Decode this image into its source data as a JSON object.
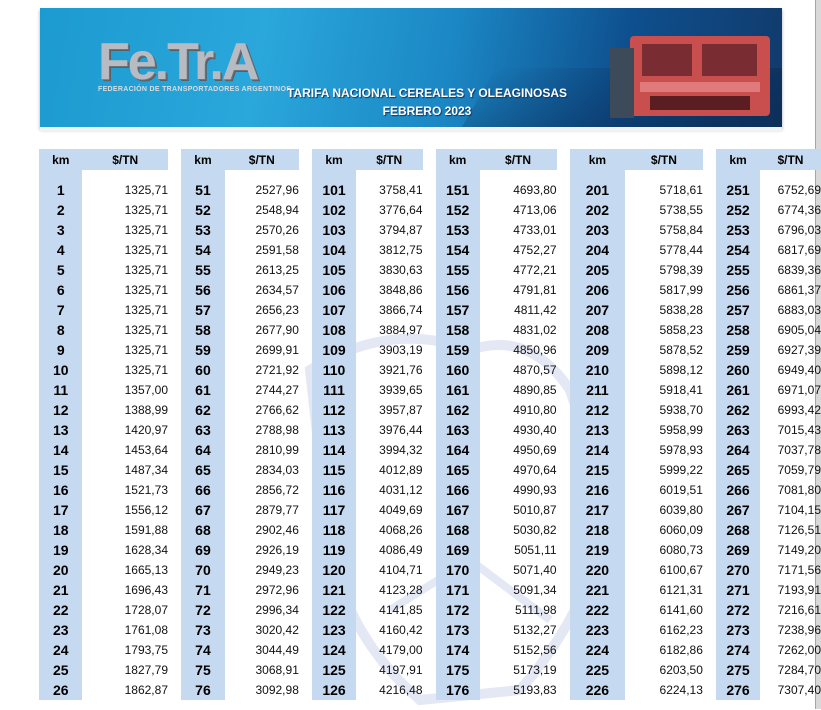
{
  "header": {
    "logo_text": "Fe.Tr.A",
    "logo_subtitle": "FEDERACIÓN DE TRANSPORTADORES ARGENTINOS",
    "title": "TARIFA NACIONAL CEREALES Y OLEAGINOSAS",
    "subtitle": "FEBRERO  2023"
  },
  "table": {
    "columns": [
      {
        "km": "km",
        "val": "$/TN"
      },
      {
        "km": "km",
        "val": "$/TN"
      },
      {
        "km": "km",
        "val": "$/TN"
      },
      {
        "km": "km",
        "val": "$/TN"
      },
      {
        "km": "km",
        "val": "$/TN"
      },
      {
        "km": "km",
        "val": "$/TN"
      }
    ],
    "rows": [
      [
        [
          "1",
          "1325,71"
        ],
        [
          "51",
          "2527,96"
        ],
        [
          "101",
          "3758,41"
        ],
        [
          "151",
          "4693,80"
        ],
        [
          "201",
          "5718,61"
        ],
        [
          "251",
          "6752,69"
        ]
      ],
      [
        [
          "2",
          "1325,71"
        ],
        [
          "52",
          "2548,94"
        ],
        [
          "102",
          "3776,64"
        ],
        [
          "152",
          "4713,06"
        ],
        [
          "202",
          "5738,55"
        ],
        [
          "252",
          "6774,36"
        ]
      ],
      [
        [
          "3",
          "1325,71"
        ],
        [
          "53",
          "2570,26"
        ],
        [
          "103",
          "3794,87"
        ],
        [
          "153",
          "4733,01"
        ],
        [
          "203",
          "5758,84"
        ],
        [
          "253",
          "6796,03"
        ]
      ],
      [
        [
          "4",
          "1325,71"
        ],
        [
          "54",
          "2591,58"
        ],
        [
          "104",
          "3812,75"
        ],
        [
          "154",
          "4752,27"
        ],
        [
          "204",
          "5778,44"
        ],
        [
          "254",
          "6817,69"
        ]
      ],
      [
        [
          "5",
          "1325,71"
        ],
        [
          "55",
          "2613,25"
        ],
        [
          "105",
          "3830,63"
        ],
        [
          "155",
          "4772,21"
        ],
        [
          "205",
          "5798,39"
        ],
        [
          "255",
          "6839,36"
        ]
      ],
      [
        [
          "6",
          "1325,71"
        ],
        [
          "56",
          "2634,57"
        ],
        [
          "106",
          "3848,86"
        ],
        [
          "156",
          "4791,81"
        ],
        [
          "206",
          "5817,99"
        ],
        [
          "256",
          "6861,37"
        ]
      ],
      [
        [
          "7",
          "1325,71"
        ],
        [
          "57",
          "2656,23"
        ],
        [
          "107",
          "3866,74"
        ],
        [
          "157",
          "4811,42"
        ],
        [
          "207",
          "5838,28"
        ],
        [
          "257",
          "6883,03"
        ]
      ],
      [
        [
          "8",
          "1325,71"
        ],
        [
          "58",
          "2677,90"
        ],
        [
          "108",
          "3884,97"
        ],
        [
          "158",
          "4831,02"
        ],
        [
          "208",
          "5858,23"
        ],
        [
          "258",
          "6905,04"
        ]
      ],
      [
        [
          "9",
          "1325,71"
        ],
        [
          "59",
          "2699,91"
        ],
        [
          "109",
          "3903,19"
        ],
        [
          "159",
          "4850,96"
        ],
        [
          "209",
          "5878,52"
        ],
        [
          "259",
          "6927,39"
        ]
      ],
      [
        [
          "10",
          "1325,71"
        ],
        [
          "60",
          "2721,92"
        ],
        [
          "110",
          "3921,76"
        ],
        [
          "160",
          "4870,57"
        ],
        [
          "210",
          "5898,12"
        ],
        [
          "260",
          "6949,40"
        ]
      ],
      [
        [
          "11",
          "1357,00"
        ],
        [
          "61",
          "2744,27"
        ],
        [
          "111",
          "3939,65"
        ],
        [
          "161",
          "4890,85"
        ],
        [
          "211",
          "5918,41"
        ],
        [
          "261",
          "6971,07"
        ]
      ],
      [
        [
          "12",
          "1388,99"
        ],
        [
          "62",
          "2766,62"
        ],
        [
          "112",
          "3957,87"
        ],
        [
          "162",
          "4910,80"
        ],
        [
          "212",
          "5938,70"
        ],
        [
          "262",
          "6993,42"
        ]
      ],
      [
        [
          "13",
          "1420,97"
        ],
        [
          "63",
          "2788,98"
        ],
        [
          "113",
          "3976,44"
        ],
        [
          "163",
          "4930,40"
        ],
        [
          "213",
          "5958,99"
        ],
        [
          "263",
          "7015,43"
        ]
      ],
      [
        [
          "14",
          "1453,64"
        ],
        [
          "64",
          "2810,99"
        ],
        [
          "114",
          "3994,32"
        ],
        [
          "164",
          "4950,69"
        ],
        [
          "214",
          "5978,93"
        ],
        [
          "264",
          "7037,78"
        ]
      ],
      [
        [
          "15",
          "1487,34"
        ],
        [
          "65",
          "2834,03"
        ],
        [
          "115",
          "4012,89"
        ],
        [
          "165",
          "4970,64"
        ],
        [
          "215",
          "5999,22"
        ],
        [
          "265",
          "7059,79"
        ]
      ],
      [
        [
          "16",
          "1521,73"
        ],
        [
          "66",
          "2856,72"
        ],
        [
          "116",
          "4031,12"
        ],
        [
          "166",
          "4990,93"
        ],
        [
          "216",
          "6019,51"
        ],
        [
          "266",
          "7081,80"
        ]
      ],
      [
        [
          "17",
          "1556,12"
        ],
        [
          "67",
          "2879,77"
        ],
        [
          "117",
          "4049,69"
        ],
        [
          "167",
          "5010,87"
        ],
        [
          "217",
          "6039,80"
        ],
        [
          "267",
          "7104,15"
        ]
      ],
      [
        [
          "18",
          "1591,88"
        ],
        [
          "68",
          "2902,46"
        ],
        [
          "118",
          "4068,26"
        ],
        [
          "168",
          "5030,82"
        ],
        [
          "218",
          "6060,09"
        ],
        [
          "268",
          "7126,51"
        ]
      ],
      [
        [
          "19",
          "1628,34"
        ],
        [
          "69",
          "2926,19"
        ],
        [
          "119",
          "4086,49"
        ],
        [
          "169",
          "5051,11"
        ],
        [
          "219",
          "6080,73"
        ],
        [
          "269",
          "7149,20"
        ]
      ],
      [
        [
          "20",
          "1665,13"
        ],
        [
          "70",
          "2949,23"
        ],
        [
          "120",
          "4104,71"
        ],
        [
          "170",
          "5071,40"
        ],
        [
          "220",
          "6100,67"
        ],
        [
          "270",
          "7171,56"
        ]
      ],
      [
        [
          "21",
          "1696,43"
        ],
        [
          "71",
          "2972,96"
        ],
        [
          "121",
          "4123,28"
        ],
        [
          "171",
          "5091,34"
        ],
        [
          "221",
          "6121,31"
        ],
        [
          "271",
          "7193,91"
        ]
      ],
      [
        [
          "22",
          "1728,07"
        ],
        [
          "72",
          "2996,34"
        ],
        [
          "122",
          "4141,85"
        ],
        [
          "172",
          "5111,98"
        ],
        [
          "222",
          "6141,60"
        ],
        [
          "272",
          "7216,61"
        ]
      ],
      [
        [
          "23",
          "1761,08"
        ],
        [
          "73",
          "3020,42"
        ],
        [
          "123",
          "4160,42"
        ],
        [
          "173",
          "5132,27"
        ],
        [
          "223",
          "6162,23"
        ],
        [
          "273",
          "7238,96"
        ]
      ],
      [
        [
          "24",
          "1793,75"
        ],
        [
          "74",
          "3044,49"
        ],
        [
          "124",
          "4179,00"
        ],
        [
          "174",
          "5152,56"
        ],
        [
          "224",
          "6182,86"
        ],
        [
          "274",
          "7262,00"
        ]
      ],
      [
        [
          "25",
          "1827,79"
        ],
        [
          "75",
          "3068,91"
        ],
        [
          "125",
          "4197,91"
        ],
        [
          "175",
          "5173,19"
        ],
        [
          "225",
          "6203,50"
        ],
        [
          "275",
          "7284,70"
        ]
      ],
      [
        [
          "26",
          "1862,87"
        ],
        [
          "76",
          "3092,98"
        ],
        [
          "126",
          "4216,48"
        ],
        [
          "176",
          "5193,83"
        ],
        [
          "226",
          "6224,13"
        ],
        [
          "276",
          "7307,40"
        ]
      ]
    ]
  },
  "colors": {
    "km_column_bg": "#c5d9f1",
    "banner_blue": "#2aa7db",
    "banner_dark": "#113a6a"
  }
}
